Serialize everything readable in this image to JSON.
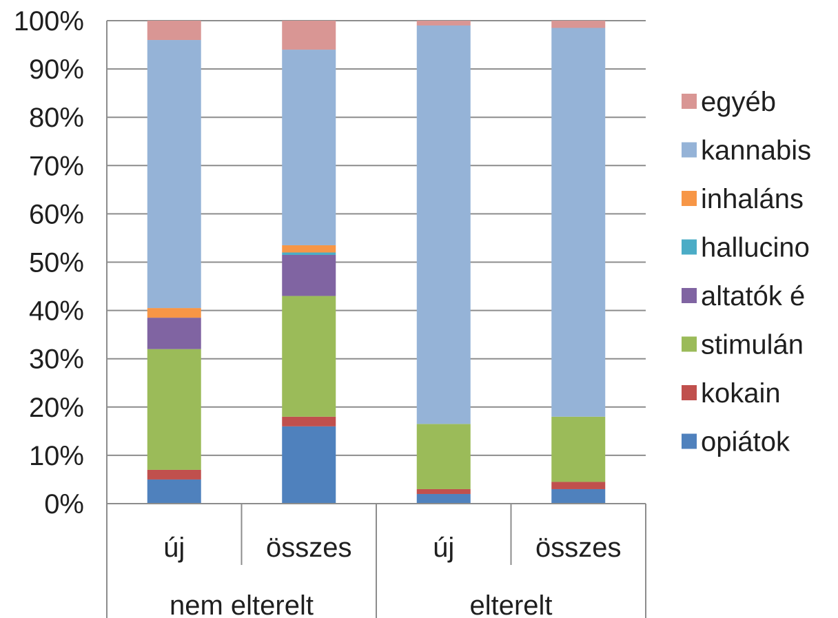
{
  "chart_data": {
    "type": "bar",
    "stacked": true,
    "percent_stacked": true,
    "groups": [
      {
        "label": "nem elterelt",
        "categories": [
          "új",
          "összes"
        ]
      },
      {
        "label": "elterelt",
        "categories": [
          "új",
          "összes"
        ]
      }
    ],
    "categories": [
      "új",
      "összes",
      "új",
      "összes"
    ],
    "y_ticks": [
      "0%",
      "10%",
      "20%",
      "30%",
      "40%",
      "50%",
      "60%",
      "70%",
      "80%",
      "90%",
      "100%"
    ],
    "ylim": [
      0,
      100
    ],
    "grid": true,
    "legend_position": "right",
    "series": [
      {
        "name": "opiátok",
        "color": "#4f81bd",
        "values": [
          5,
          16,
          2,
          3
        ]
      },
      {
        "name": "kokain",
        "color": "#c0504d",
        "values": [
          2,
          2,
          1,
          1.5
        ]
      },
      {
        "name": "stimulán",
        "color": "#9bbb59",
        "values": [
          25,
          25,
          13.5,
          13.5
        ]
      },
      {
        "name": "altatók é",
        "color": "#8064a2",
        "values": [
          6.5,
          8.5,
          0,
          0
        ]
      },
      {
        "name": "hallucino",
        "color": "#4bacc6",
        "values": [
          0,
          0.5,
          0,
          0
        ]
      },
      {
        "name": "inhaláns",
        "color": "#f79646",
        "values": [
          2,
          1.5,
          0,
          0
        ]
      },
      {
        "name": "kannabis",
        "color": "#95b3d7",
        "values": [
          55.5,
          40.5,
          82.5,
          80.5
        ]
      },
      {
        "name": "egyéb",
        "color": "#d99694",
        "values": [
          4,
          6,
          1,
          1.5
        ]
      }
    ]
  }
}
